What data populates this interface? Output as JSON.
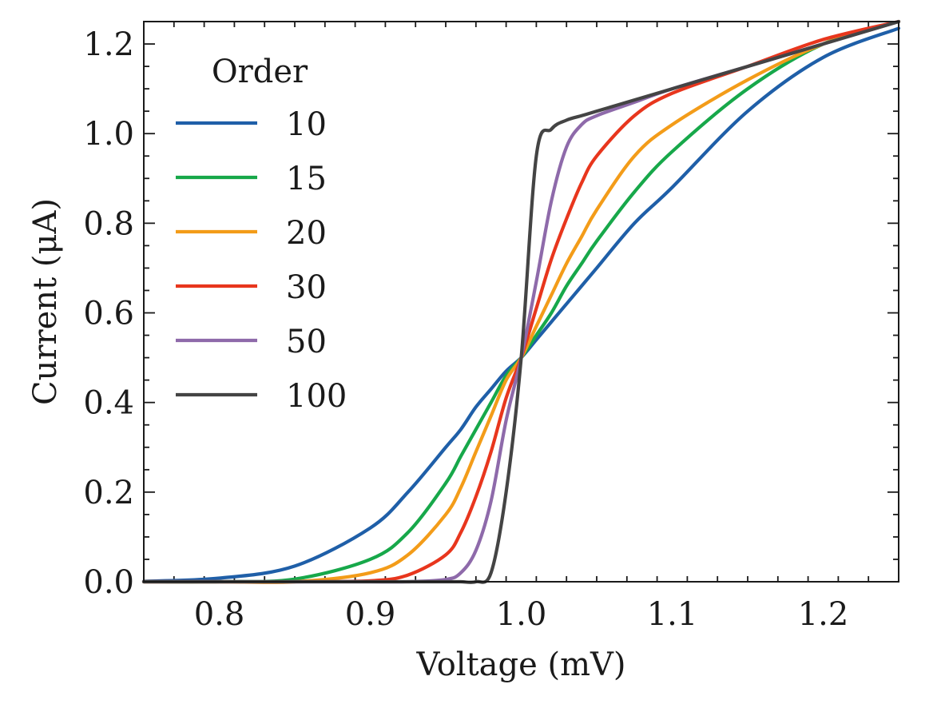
{
  "chart_data": {
    "type": "line",
    "title": "",
    "xlabel": "Voltage (mV)",
    "ylabel": "Current (μA)",
    "xlim": [
      0.75,
      1.25
    ],
    "ylim": [
      0.0,
      1.25
    ],
    "xticks": [
      0.8,
      0.9,
      1.0,
      1.1,
      1.2
    ],
    "xtick_labels": [
      "0.8",
      "0.9",
      "1.0",
      "1.1",
      "1.2"
    ],
    "yticks": [
      0.0,
      0.2,
      0.4,
      0.6,
      0.8,
      1.0,
      1.2
    ],
    "ytick_labels": [
      "0.0",
      "0.2",
      "0.4",
      "0.6",
      "0.8",
      "1.0",
      "1.2"
    ],
    "grid": false,
    "legend": {
      "title": "Order",
      "placement": "upper left"
    },
    "x": [
      0.75,
      0.8,
      0.85,
      0.9,
      0.925,
      0.95,
      0.96,
      0.97,
      0.98,
      0.99,
      1.0,
      1.01,
      1.02,
      1.03,
      1.04,
      1.05,
      1.075,
      1.1,
      1.15,
      1.2,
      1.25
    ],
    "series": [
      {
        "name": "10",
        "color": "#1f5fa8",
        "values": [
          0.001,
          0.008,
          0.035,
          0.12,
          0.2,
          0.3,
          0.34,
          0.39,
          0.43,
          0.47,
          0.5,
          0.54,
          0.58,
          0.62,
          0.66,
          0.7,
          0.8,
          0.88,
          1.05,
          1.17,
          1.235
        ]
      },
      {
        "name": "15",
        "color": "#17a84a",
        "values": [
          0.0,
          0.0,
          0.006,
          0.05,
          0.11,
          0.22,
          0.28,
          0.34,
          0.4,
          0.46,
          0.5,
          0.55,
          0.6,
          0.66,
          0.71,
          0.76,
          0.87,
          0.96,
          1.1,
          1.2,
          1.25
        ]
      },
      {
        "name": "20",
        "color": "#f39c19",
        "values": [
          0.0,
          0.0,
          0.0,
          0.02,
          0.06,
          0.15,
          0.21,
          0.29,
          0.37,
          0.45,
          0.5,
          0.57,
          0.64,
          0.71,
          0.77,
          0.83,
          0.95,
          1.02,
          1.12,
          1.2,
          1.25
        ]
      },
      {
        "name": "30",
        "color": "#e8361d",
        "values": [
          0.0,
          0.0,
          0.0,
          0.002,
          0.015,
          0.06,
          0.11,
          0.19,
          0.29,
          0.41,
          0.5,
          0.61,
          0.72,
          0.81,
          0.89,
          0.95,
          1.04,
          1.09,
          1.15,
          1.21,
          1.25
        ]
      },
      {
        "name": "50",
        "color": "#8e6aaa",
        "values": [
          0.0,
          0.0,
          0.0,
          0.0,
          0.0,
          0.005,
          0.02,
          0.07,
          0.18,
          0.36,
          0.5,
          0.67,
          0.85,
          0.97,
          1.02,
          1.04,
          1.07,
          1.1,
          1.15,
          1.2,
          1.25
        ]
      },
      {
        "name": "100",
        "color": "#444444",
        "values": [
          0.0,
          0.0,
          0.0,
          0.0,
          0.0,
          0.0,
          0.0,
          0.0,
          0.02,
          0.2,
          0.5,
          0.95,
          1.01,
          1.03,
          1.04,
          1.05,
          1.075,
          1.1,
          1.15,
          1.2,
          1.25
        ]
      }
    ]
  }
}
